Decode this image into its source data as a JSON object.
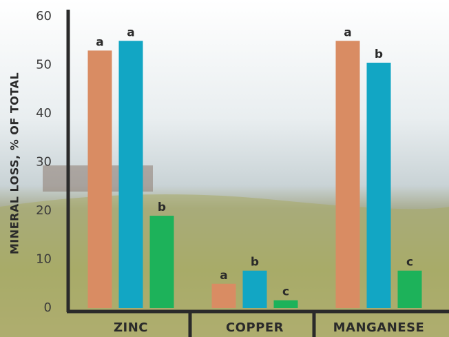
{
  "chart_data": {
    "type": "bar",
    "y_label": "MINERAL LOSS, % OF TOTAL",
    "categories": [
      "ZINC",
      "COPPER",
      "MANGANESE"
    ],
    "series": [
      {
        "color": "#d98c63",
        "values": [
          53,
          5,
          55
        ],
        "labels": [
          "a",
          "a",
          "a"
        ]
      },
      {
        "color": "#12a6c4",
        "values": [
          55,
          7.7,
          50.5
        ],
        "labels": [
          "a",
          "b",
          "b"
        ]
      },
      {
        "color": "#1db25a",
        "values": [
          19,
          1.6,
          7.7
        ],
        "labels": [
          "b",
          "c",
          "c"
        ]
      }
    ],
    "ylim": [
      0,
      60
    ],
    "yticks": [
      0,
      10,
      20,
      30,
      40,
      50,
      60
    ],
    "grid": false
  }
}
